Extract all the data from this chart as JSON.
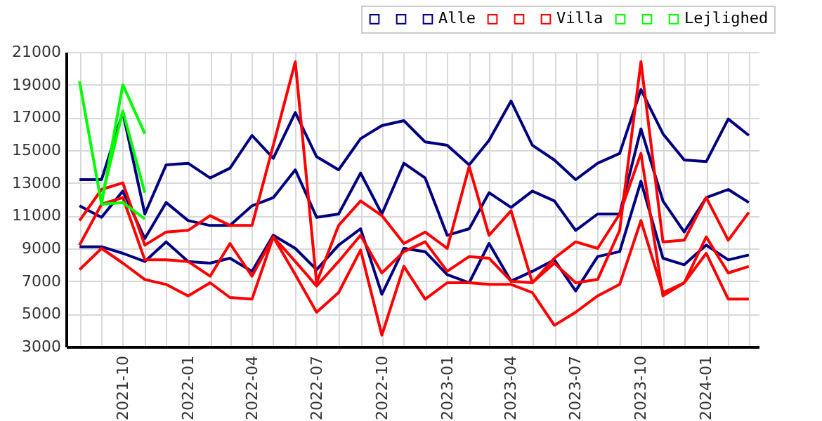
{
  "chart_data": {
    "type": "line",
    "x": [
      "2021-08",
      "2021-09",
      "2021-10",
      "2021-11",
      "2021-12",
      "2022-01",
      "2022-02",
      "2022-03",
      "2022-04",
      "2022-05",
      "2022-06",
      "2022-07",
      "2022-08",
      "2022-09",
      "2022-10",
      "2022-11",
      "2022-12",
      "2023-01",
      "2023-02",
      "2023-03",
      "2023-04",
      "2023-05",
      "2023-06",
      "2023-07",
      "2023-08",
      "2023-09",
      "2023-10",
      "2023-11",
      "2023-12",
      "2024-01",
      "2024-02",
      "2024-03"
    ],
    "series": [
      {
        "color": "#000080",
        "values": [
          13200,
          13200,
          17300,
          11100,
          14100,
          14200,
          13300,
          13900,
          15900,
          14500,
          17300,
          14600,
          13800,
          15700,
          16500,
          16800,
          15500,
          15300,
          14100,
          15600,
          18000,
          15300,
          14400,
          13200,
          14200,
          14800,
          18700,
          16000,
          14400,
          14300,
          16900,
          15900
        ]
      },
      {
        "color": "#000080",
        "values": [
          11600,
          10900,
          12500,
          9600,
          11800,
          10700,
          10400,
          10400,
          11600,
          12100,
          13800,
          10900,
          11100,
          13600,
          11100,
          14200,
          13300,
          9800,
          10200,
          12400,
          11500,
          12500,
          11900,
          10100,
          11100,
          11100,
          16300,
          11900,
          10000,
          12100,
          12600,
          11800
        ]
      },
      {
        "name": "Alle",
        "color": "#000080",
        "values": [
          9100,
          9100,
          8700,
          8200,
          9400,
          8200,
          8100,
          8400,
          7600,
          9800,
          9000,
          7700,
          9200,
          10200,
          6200,
          9000,
          8800,
          7400,
          6900,
          9300,
          7000,
          7600,
          8300,
          6400,
          8500,
          8800,
          13100,
          8400,
          8000,
          9200,
          8300,
          8600
        ]
      },
      {
        "color": "#ff0000",
        "values": [
          10700,
          12600,
          13000,
          9200,
          10000,
          10100,
          11000,
          10400,
          10400,
          15300,
          20400,
          6900,
          10400,
          11900,
          11000,
          9300,
          10000,
          9000,
          14000,
          9800,
          11300,
          6900,
          8100,
          6900,
          7100,
          10100,
          20400,
          9400,
          9500,
          12100,
          9500,
          11200
        ]
      },
      {
        "color": "#ff0000",
        "values": [
          9200,
          11700,
          12100,
          8300,
          8300,
          8200,
          7300,
          9300,
          7300,
          9700,
          8200,
          6700,
          8200,
          9800,
          7500,
          8800,
          9400,
          7600,
          8500,
          8400,
          7000,
          6900,
          8400,
          9400,
          9000,
          11100,
          14800,
          6100,
          6900,
          9700,
          7500,
          7900
        ]
      },
      {
        "name": "Villa",
        "color": "#ff0000",
        "values": [
          7700,
          9000,
          8100,
          7100,
          6800,
          6100,
          6900,
          6000,
          5900,
          9700,
          7400,
          5100,
          6300,
          8900,
          3700,
          7900,
          5900,
          6900,
          6900,
          6800,
          6800,
          6300,
          4300,
          5100,
          6100,
          6800,
          10700,
          6300,
          6900,
          8700,
          5900,
          5900
        ]
      },
      {
        "color": "#00ff00",
        "values": [
          19200,
          11700,
          19000,
          16000,
          null,
          null,
          null,
          null,
          null,
          null,
          null,
          null,
          null,
          null,
          null,
          null,
          null,
          null,
          null,
          null,
          null,
          null,
          null,
          null,
          null,
          null,
          null,
          null,
          null,
          null,
          null,
          null
        ]
      },
      {
        "color": "#00ff00",
        "values": [
          null,
          12000,
          17400,
          12400,
          null,
          null,
          null,
          null,
          null,
          null,
          null,
          null,
          null,
          null,
          null,
          null,
          null,
          null,
          null,
          null,
          null,
          null,
          null,
          null,
          null,
          null,
          null,
          null,
          null,
          null,
          null,
          null
        ]
      },
      {
        "name": "Lejlighed",
        "color": "#00ff00",
        "values": [
          null,
          11700,
          11800,
          10800,
          null,
          null,
          null,
          null,
          null,
          null,
          null,
          null,
          null,
          null,
          null,
          null,
          null,
          null,
          null,
          null,
          null,
          null,
          null,
          null,
          null,
          null,
          null,
          null,
          null,
          null,
          null,
          null
        ]
      }
    ],
    "xlim": [
      "2021-07-13",
      "2024-03-15"
    ],
    "xticks": [
      {
        "value": "2021-08",
        "label": null
      },
      {
        "value": "2021-09",
        "label": null
      },
      "2021-10",
      {
        "value": "2021-11",
        "label": null
      },
      {
        "value": "2021-12",
        "label": null
      },
      "2022-01",
      {
        "value": "2022-02",
        "label": null
      },
      {
        "value": "2022-03",
        "label": null
      },
      "2022-04",
      {
        "value": "2022-05",
        "label": null
      },
      {
        "value": "2022-06",
        "label": null
      },
      "2022-07",
      {
        "value": "2022-08",
        "label": null
      },
      {
        "value": "2022-09",
        "label": null
      },
      "2022-10",
      {
        "value": "2022-11",
        "label": null
      },
      {
        "value": "2022-12",
        "label": null
      },
      "2023-01",
      {
        "value": "2023-02",
        "label": null
      },
      {
        "value": "2023-03",
        "label": null
      },
      "2023-04",
      {
        "value": "2023-05",
        "label": null
      },
      {
        "value": "2023-06",
        "label": null
      },
      "2023-07",
      {
        "value": "2023-08",
        "label": null
      },
      {
        "value": "2023-09",
        "label": null
      },
      "2023-10",
      {
        "value": "2023-11",
        "label": null
      },
      {
        "value": "2023-12",
        "label": null
      },
      "2024-01",
      {
        "value": "2024-02",
        "label": null
      },
      {
        "value": "2024-03",
        "label": null
      }
    ],
    "ylim": [
      3000,
      21000
    ],
    "yticks": [
      3000,
      5000,
      7000,
      9000,
      11000,
      13000,
      15000,
      17000,
      19000,
      21000
    ],
    "grid": true,
    "legend": "top right"
  }
}
